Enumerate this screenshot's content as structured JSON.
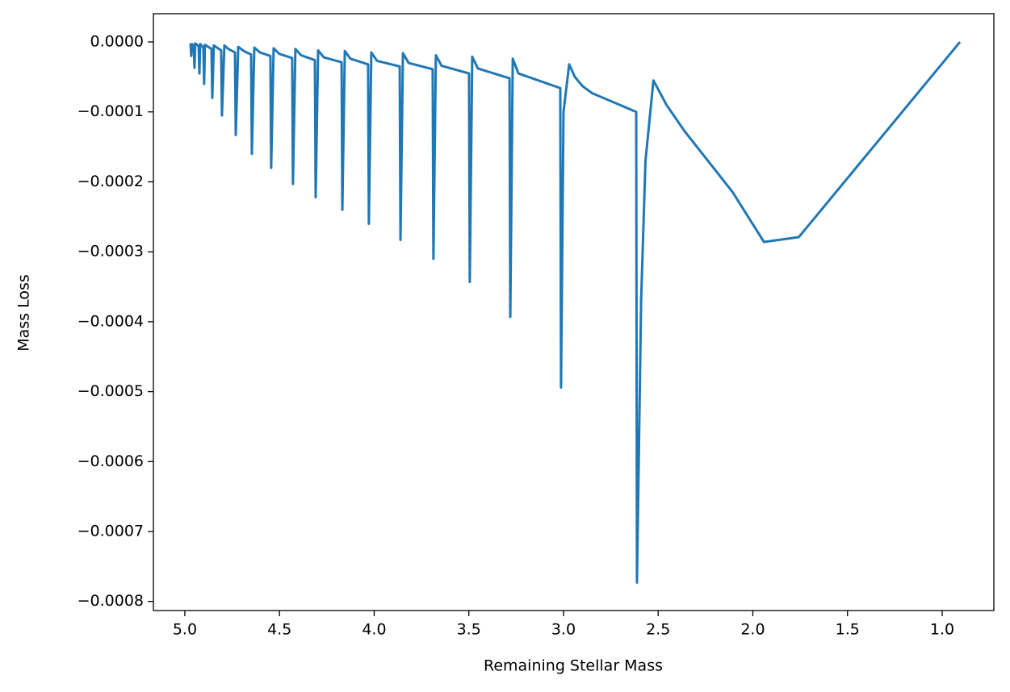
{
  "chart_data": {
    "type": "line",
    "xlabel": "Remaining Stellar Mass",
    "ylabel": "Mass Loss",
    "xlim": [
      5.166,
      0.727
    ],
    "ylim": [
      -0.000813,
      4.04e-05
    ],
    "xticks": [
      {
        "value": 5.0,
        "label": "5.0"
      },
      {
        "value": 4.5,
        "label": "4.5"
      },
      {
        "value": 4.0,
        "label": "4.0"
      },
      {
        "value": 3.5,
        "label": "3.5"
      },
      {
        "value": 3.0,
        "label": "3.0"
      },
      {
        "value": 2.5,
        "label": "2.5"
      },
      {
        "value": 2.0,
        "label": "2.0"
      },
      {
        "value": 1.5,
        "label": "1.5"
      },
      {
        "value": 1.0,
        "label": "1.0"
      }
    ],
    "yticks": [
      {
        "value": 0,
        "label": "0.0000"
      },
      {
        "value": -0.0001,
        "label": "−0.0001"
      },
      {
        "value": -0.0002,
        "label": "−0.0002"
      },
      {
        "value": -0.0003,
        "label": "−0.0003"
      },
      {
        "value": -0.0004,
        "label": "−0.0004"
      },
      {
        "value": -0.0005,
        "label": "−0.0005"
      },
      {
        "value": -0.0006,
        "label": "−0.0006"
      },
      {
        "value": -0.0007,
        "label": "−0.0007"
      },
      {
        "value": -0.0008,
        "label": "−0.0008"
      }
    ],
    "x": [
      4.97,
      4.966,
      4.962,
      4.953,
      4.949,
      4.945,
      4.927,
      4.923,
      4.919,
      4.902,
      4.898,
      4.894,
      4.859,
      4.855,
      4.847,
      4.808,
      4.804,
      4.791,
      4.77,
      4.735,
      4.731,
      4.718,
      4.688,
      4.65,
      4.646,
      4.633,
      4.603,
      4.548,
      4.544,
      4.531,
      4.501,
      4.433,
      4.429,
      4.416,
      4.386,
      4.313,
      4.309,
      4.296,
      4.266,
      4.172,
      4.168,
      4.155,
      4.125,
      4.032,
      4.028,
      4.015,
      3.985,
      3.865,
      3.861,
      3.848,
      3.818,
      3.691,
      3.687,
      3.674,
      3.644,
      3.499,
      3.495,
      3.482,
      3.452,
      3.285,
      3.281,
      3.268,
      3.238,
      3.017,
      3.013,
      3.0,
      2.97,
      2.94,
      2.9,
      2.85,
      2.616,
      2.612,
      2.59,
      2.567,
      2.525,
      2.456,
      2.362,
      2.106,
      1.941,
      1.757,
      0.906
    ],
    "series": [
      {
        "name": "Mass Loss",
        "color": "#1f77b4",
        "values": [
          -2e-06,
          -2e-05,
          -3e-06,
          -5e-06,
          -3.7e-05,
          -2e-06,
          -6e-06,
          -4.5e-05,
          -3e-06,
          -8e-06,
          -6e-05,
          -4e-06,
          -1e-05,
          -8e-05,
          -5e-06,
          -1.2e-05,
          -0.000105,
          -5e-06,
          -1e-05,
          -1.5e-05,
          -0.000133,
          -7e-06,
          -1.3e-05,
          -1.8e-05,
          -0.00016,
          -8e-06,
          -1.5e-05,
          -2e-05,
          -0.00018,
          -9e-06,
          -1.7e-05,
          -2.3e-05,
          -0.000203,
          -1e-05,
          -1.9e-05,
          -2.6e-05,
          -0.000222,
          -1.2e-05,
          -2.2e-05,
          -2.9e-05,
          -0.00024,
          -1.3e-05,
          -2.4e-05,
          -3.2e-05,
          -0.00026,
          -1.5e-05,
          -2.7e-05,
          -3.5e-05,
          -0.000283,
          -1.6e-05,
          -3e-05,
          -3.9e-05,
          -0.00031,
          -1.9e-05,
          -3.4e-05,
          -4.5e-05,
          -0.000343,
          -2.1e-05,
          -3.8e-05,
          -5.2e-05,
          -0.000393,
          -2.4e-05,
          -4.5e-05,
          -6.6e-05,
          -0.000494,
          -0.0001,
          -3.2e-05,
          -5e-05,
          -6.3e-05,
          -7.3e-05,
          -0.0001,
          -0.000773,
          -0.00037,
          -0.00017,
          -5.5e-05,
          -9e-05,
          -0.000127,
          -0.000215,
          -0.000286,
          -0.000279,
          0
        ]
      }
    ]
  }
}
